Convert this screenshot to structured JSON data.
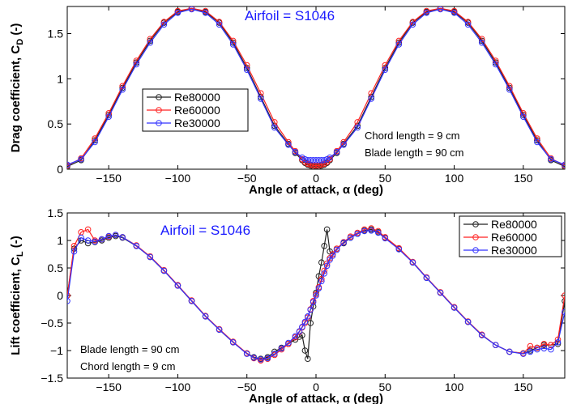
{
  "chart_data": [
    {
      "type": "line",
      "title": "Airfoil =   S1046",
      "xlabel": "Angle of attack, α (deg)",
      "ylabel": "Drag coefficient, C",
      "ylabel_sub": "D",
      "ylabel_suffix": " (-)",
      "xlim": [
        -180,
        180
      ],
      "ylim": [
        0,
        1.8
      ],
      "xticks": [
        -150,
        -100,
        -50,
        0,
        50,
        100,
        150
      ],
      "yticks": [
        0,
        0.5,
        1,
        1.5
      ],
      "ytick_labels": [
        "0",
        "0.5",
        "1",
        "1.5"
      ],
      "legend": "upper-left-middle",
      "annotations": [
        "Chord length = 9 cm",
        "Blade length = 90 cm"
      ],
      "series": [
        {
          "name": "Re80000",
          "color": "#222222",
          "x": [
            -180,
            -170,
            -160,
            -150,
            -140,
            -130,
            -120,
            -110,
            -100,
            -90,
            -80,
            -70,
            -60,
            -50,
            -40,
            -30,
            -20,
            -15,
            -10,
            -8,
            -6,
            -4,
            -2,
            0,
            2,
            4,
            6,
            8,
            10,
            15,
            20,
            30,
            40,
            50,
            60,
            70,
            80,
            90,
            100,
            110,
            120,
            130,
            140,
            150,
            160,
            170,
            180
          ],
          "y": [
            0.03,
            0.1,
            0.32,
            0.6,
            0.9,
            1.18,
            1.42,
            1.62,
            1.74,
            1.78,
            1.74,
            1.62,
            1.4,
            1.12,
            0.8,
            0.48,
            0.28,
            0.18,
            0.1,
            0.07,
            0.05,
            0.04,
            0.03,
            0.03,
            0.03,
            0.04,
            0.05,
            0.07,
            0.1,
            0.18,
            0.28,
            0.48,
            0.8,
            1.12,
            1.4,
            1.62,
            1.74,
            1.78,
            1.74,
            1.62,
            1.42,
            1.18,
            0.9,
            0.6,
            0.32,
            0.1,
            0.03
          ]
        },
        {
          "name": "Re60000",
          "color": "#ff2222",
          "x": [
            -180,
            -170,
            -160,
            -150,
            -140,
            -130,
            -120,
            -110,
            -100,
            -90,
            -80,
            -70,
            -60,
            -50,
            -40,
            -30,
            -20,
            -15,
            -10,
            -8,
            -6,
            -4,
            -2,
            0,
            2,
            4,
            6,
            8,
            10,
            15,
            20,
            30,
            40,
            50,
            60,
            70,
            80,
            90,
            100,
            110,
            120,
            130,
            140,
            150,
            160,
            170,
            180
          ],
          "y": [
            0.04,
            0.12,
            0.34,
            0.62,
            0.92,
            1.2,
            1.44,
            1.63,
            1.75,
            1.78,
            1.75,
            1.63,
            1.42,
            1.15,
            0.84,
            0.52,
            0.3,
            0.2,
            0.11,
            0.08,
            0.06,
            0.05,
            0.04,
            0.04,
            0.04,
            0.05,
            0.06,
            0.08,
            0.11,
            0.2,
            0.3,
            0.52,
            0.84,
            1.15,
            1.42,
            1.63,
            1.75,
            1.78,
            1.75,
            1.63,
            1.44,
            1.2,
            0.92,
            0.62,
            0.34,
            0.12,
            0.04
          ]
        },
        {
          "name": "Re30000",
          "color": "#3333ff",
          "x": [
            -180,
            -170,
            -160,
            -150,
            -140,
            -130,
            -120,
            -110,
            -100,
            -90,
            -80,
            -70,
            -60,
            -50,
            -40,
            -30,
            -20,
            -15,
            -10,
            -8,
            -6,
            -4,
            -2,
            0,
            2,
            4,
            6,
            8,
            10,
            15,
            20,
            30,
            40,
            50,
            60,
            70,
            80,
            90,
            100,
            110,
            120,
            130,
            140,
            150,
            160,
            170,
            180
          ],
          "y": [
            0.05,
            0.11,
            0.3,
            0.58,
            0.88,
            1.16,
            1.4,
            1.6,
            1.73,
            1.77,
            1.73,
            1.6,
            1.38,
            1.1,
            0.78,
            0.46,
            0.27,
            0.19,
            0.13,
            0.11,
            0.1,
            0.1,
            0.1,
            0.1,
            0.1,
            0.1,
            0.1,
            0.11,
            0.13,
            0.19,
            0.27,
            0.46,
            0.78,
            1.1,
            1.38,
            1.6,
            1.73,
            1.77,
            1.73,
            1.6,
            1.4,
            1.16,
            0.88,
            0.58,
            0.3,
            0.11,
            0.05
          ]
        }
      ]
    },
    {
      "type": "line",
      "title": "Airfoil =   S1046",
      "xlabel": "Angle of attack, α (deg)",
      "ylabel": "Lift coefficient, C",
      "ylabel_sub": "L",
      "ylabel_suffix": " (-)",
      "xlim": [
        -180,
        180
      ],
      "ylim": [
        -1.5,
        1.5
      ],
      "xticks": [
        -150,
        -100,
        -50,
        0,
        50,
        100,
        150
      ],
      "yticks": [
        -1.5,
        -1,
        -0.5,
        0,
        0.5,
        1,
        1.5
      ],
      "ytick_labels": [
        "-1.5",
        "-1",
        "-0.5",
        "0",
        "0.5",
        "1",
        "1.5"
      ],
      "legend": "top-right",
      "annotations": [
        "Blade length = 90 cm",
        "Chord length = 9 cm"
      ],
      "series": [
        {
          "name": "Re80000",
          "color": "#222222",
          "x": [
            -180,
            -175,
            -170,
            -165,
            -160,
            -155,
            -150,
            -145,
            -140,
            -130,
            -120,
            -110,
            -100,
            -90,
            -80,
            -70,
            -60,
            -50,
            -45,
            -40,
            -35,
            -30,
            -25,
            -20,
            -15,
            -12,
            -10,
            -8,
            -6,
            -4,
            -2,
            0,
            2,
            4,
            6,
            8,
            10,
            12,
            15,
            20,
            25,
            30,
            35,
            40,
            45,
            50,
            60,
            70,
            80,
            90,
            100,
            110,
            120,
            130,
            140,
            150,
            155,
            160,
            165,
            170,
            175,
            180
          ],
          "y": [
            0.0,
            0.85,
            1.0,
            0.95,
            0.97,
            1.0,
            1.05,
            1.08,
            1.05,
            0.9,
            0.7,
            0.45,
            0.18,
            -0.1,
            -0.38,
            -0.62,
            -0.85,
            -1.05,
            -1.12,
            -1.15,
            -1.12,
            -1.02,
            -0.95,
            -0.88,
            -0.8,
            -0.75,
            -0.72,
            -1.0,
            -1.15,
            -0.5,
            -0.2,
            0.05,
            0.35,
            0.6,
            0.9,
            1.2,
            0.8,
            0.75,
            0.85,
            0.95,
            1.05,
            1.12,
            1.18,
            1.2,
            1.15,
            1.05,
            0.85,
            0.6,
            0.32,
            0.05,
            -0.22,
            -0.48,
            -0.72,
            -0.9,
            -1.02,
            -1.05,
            -1.0,
            -0.95,
            -0.9,
            -0.9,
            -0.88,
            -0.1
          ]
        },
        {
          "name": "Re60000",
          "color": "#ff2222",
          "x": [
            -180,
            -175,
            -170,
            -165,
            -160,
            -155,
            -150,
            -145,
            -140,
            -130,
            -120,
            -110,
            -100,
            -90,
            -80,
            -70,
            -60,
            -50,
            -45,
            -40,
            -35,
            -30,
            -25,
            -20,
            -15,
            -12,
            -10,
            -8,
            -6,
            -4,
            -2,
            0,
            2,
            4,
            6,
            8,
            10,
            12,
            15,
            20,
            25,
            30,
            35,
            40,
            45,
            50,
            60,
            70,
            80,
            90,
            100,
            110,
            120,
            130,
            140,
            150,
            155,
            160,
            165,
            170,
            175,
            180
          ],
          "y": [
            0.0,
            0.9,
            1.15,
            1.2,
            1.0,
            1.02,
            1.07,
            1.1,
            1.06,
            0.91,
            0.71,
            0.46,
            0.19,
            -0.09,
            -0.37,
            -0.61,
            -0.84,
            -1.05,
            -1.14,
            -1.18,
            -1.15,
            -1.08,
            -0.98,
            -0.88,
            -0.76,
            -0.66,
            -0.58,
            -0.5,
            -0.4,
            -0.25,
            -0.1,
            0.02,
            0.15,
            0.3,
            0.45,
            0.58,
            0.68,
            0.75,
            0.85,
            0.97,
            1.07,
            1.14,
            1.2,
            1.22,
            1.17,
            1.06,
            0.86,
            0.61,
            0.33,
            0.06,
            -0.21,
            -0.47,
            -0.71,
            -0.9,
            -1.02,
            -1.05,
            -0.92,
            -0.95,
            -0.88,
            -0.9,
            -0.8,
            0.0
          ]
        },
        {
          "name": "Re30000",
          "color": "#3333ff",
          "x": [
            -180,
            -175,
            -170,
            -165,
            -160,
            -155,
            -150,
            -145,
            -140,
            -130,
            -120,
            -110,
            -100,
            -90,
            -80,
            -70,
            -60,
            -50,
            -45,
            -40,
            -35,
            -30,
            -25,
            -20,
            -15,
            -12,
            -10,
            -8,
            -6,
            -4,
            -2,
            0,
            2,
            4,
            6,
            8,
            10,
            12,
            15,
            20,
            25,
            30,
            35,
            40,
            45,
            50,
            60,
            70,
            80,
            90,
            100,
            110,
            120,
            130,
            140,
            150,
            155,
            160,
            165,
            170,
            175,
            180
          ],
          "y": [
            -0.1,
            0.8,
            1.05,
            1.0,
            0.98,
            1.02,
            1.08,
            1.1,
            1.06,
            0.9,
            0.7,
            0.45,
            0.18,
            -0.1,
            -0.38,
            -0.62,
            -0.85,
            -1.06,
            -1.13,
            -1.16,
            -1.14,
            -1.06,
            -0.96,
            -0.86,
            -0.74,
            -0.65,
            -0.57,
            -0.48,
            -0.38,
            -0.26,
            -0.12,
            0.0,
            0.13,
            0.26,
            0.4,
            0.54,
            0.65,
            0.72,
            0.83,
            0.96,
            1.05,
            1.12,
            1.17,
            1.18,
            1.14,
            1.04,
            0.84,
            0.6,
            0.32,
            0.05,
            -0.22,
            -0.48,
            -0.72,
            -0.9,
            -1.02,
            -1.06,
            -1.02,
            -0.98,
            -0.96,
            -0.98,
            -0.85,
            -0.3
          ]
        }
      ]
    }
  ]
}
